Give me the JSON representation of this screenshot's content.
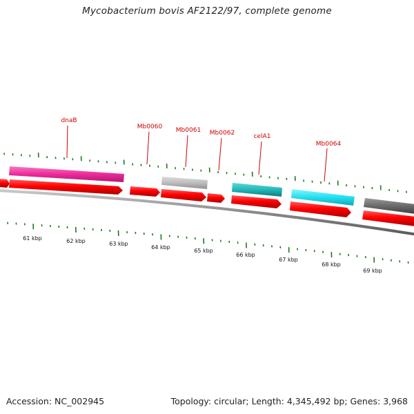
{
  "title": "Mycobacterium bovis AF2122/97, complete genome",
  "footer": {
    "accession": "Accession: NC_002945",
    "summary": "Topology: circular; Length: 4,345,492 bp; Genes: 3,968"
  },
  "colors": {
    "cds": "#ff0000",
    "tick": "#1a7a1a",
    "backbone": "#8a8a8a",
    "label": "#cc0000"
  },
  "tick_labels": [
    "61 kbp",
    "62 kbp",
    "63 kbp",
    "64 kbp",
    "65 kbp",
    "66 kbp",
    "67 kbp",
    "68 kbp",
    "69 kbp"
  ],
  "genes": [
    {
      "name": "dnaB",
      "color": "#ee2a9a"
    },
    {
      "name": "Mb0060",
      "color": ""
    },
    {
      "name": "Mb0061",
      "color": "#bdbdbd"
    },
    {
      "name": "Mb0062",
      "color": ""
    },
    {
      "name": "celA1",
      "color": "#20b8b8"
    },
    {
      "name": "Mb0064",
      "color": "#22e0f0"
    }
  ]
}
